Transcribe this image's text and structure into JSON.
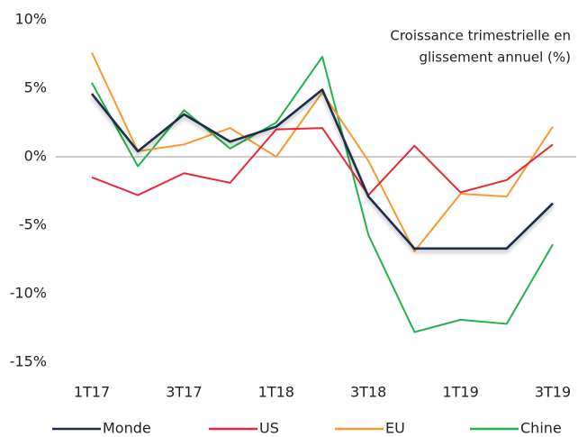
{
  "chart_data": {
    "type": "line",
    "annotation": [
      "Croissance trimestrielle en",
      "glissement annuel (%)"
    ],
    "categories": [
      "1T17",
      null,
      "3T17",
      null,
      "1T18",
      null,
      "3T18",
      null,
      "1T19",
      null,
      "3T19"
    ],
    "series": [
      {
        "name": "Monde",
        "color": "#1f2d4a",
        "values": [
          4.6,
          0.4,
          3.1,
          1.1,
          2.2,
          4.9,
          -2.9,
          -6.7,
          -6.7,
          -6.7,
          -3.4
        ]
      },
      {
        "name": "US",
        "color": "#e8283a",
        "values": [
          -1.5,
          -2.8,
          -1.2,
          -1.9,
          2.0,
          2.1,
          -2.8,
          0.8,
          -2.6,
          -1.7,
          0.9
        ]
      },
      {
        "name": "EU",
        "color": "#f59a2e",
        "values": [
          7.6,
          0.4,
          0.9,
          2.1,
          0.0,
          4.7,
          -0.3,
          -6.9,
          -2.7,
          -2.9,
          2.2
        ]
      },
      {
        "name": "Chine",
        "color": "#22b14c",
        "values": [
          5.4,
          -0.7,
          3.4,
          0.6,
          2.5,
          7.3,
          -5.7,
          -12.8,
          -11.9,
          -12.2,
          -6.4
        ]
      }
    ],
    "ylim": [
      -15,
      10
    ],
    "yticks": [
      {
        "value": -15,
        "label": "-15%"
      },
      {
        "value": -10,
        "label": "-10%"
      },
      {
        "value": -5,
        "label": "-5%"
      },
      {
        "value": 0,
        "label": "0%"
      },
      {
        "value": 5,
        "label": "5%"
      },
      {
        "value": 10,
        "label": "10%"
      }
    ],
    "legend": "bottom"
  }
}
